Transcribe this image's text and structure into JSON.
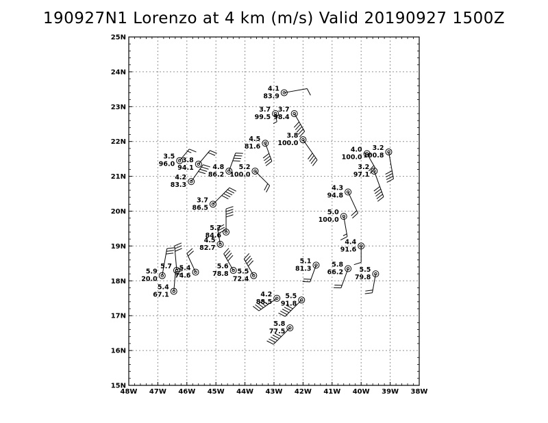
{
  "title": "190927N1 Lorenzo at 4 km (m/s) Valid 20190927 1500Z",
  "chart_data": {
    "type": "scatter",
    "xlim": [
      -48,
      -38
    ],
    "ylim": [
      15,
      25
    ],
    "x_tick_labels": [
      "48W",
      "47W",
      "46W",
      "45W",
      "44W",
      "43W",
      "42W",
      "41W",
      "40W",
      "39W",
      "38W"
    ],
    "y_tick_labels": [
      "15N",
      "16N",
      "17N",
      "18N",
      "19N",
      "20N",
      "21N",
      "22N",
      "23N",
      "24N",
      "25N"
    ],
    "grid": true,
    "observations": [
      {
        "lon": -42.65,
        "lat": 23.4,
        "speed": "4.1",
        "pressure": "83.9",
        "barb_dir": 80,
        "barb_len": 34,
        "barbs": [
          2
        ]
      },
      {
        "lon": -42.95,
        "lat": 22.8,
        "speed": "3.7",
        "pressure": "99.5",
        "barb_dir": 170,
        "barb_len": 12,
        "barbs": [
          1
        ]
      },
      {
        "lon": -42.3,
        "lat": 22.8,
        "speed": "3.7",
        "pressure": "98.4",
        "barb_dir": 150,
        "barb_len": 30,
        "barbs": [
          2,
          2,
          2,
          2,
          2
        ]
      },
      {
        "lon": -43.3,
        "lat": 21.95,
        "speed": "4.5",
        "pressure": "81.6",
        "barb_dir": 160,
        "barb_len": 28,
        "barbs": [
          2,
          2,
          2,
          2
        ]
      },
      {
        "lon": -42.0,
        "lat": 22.05,
        "speed": "3.8",
        "pressure": "100.0",
        "barb_dir": 145,
        "barb_len": 36,
        "barbs": [
          2,
          2,
          2,
          2
        ]
      },
      {
        "lon": -46.25,
        "lat": 21.45,
        "speed": "3.5",
        "pressure": "96.0",
        "barb_dir": 40,
        "barb_len": 22,
        "barbs": [
          2,
          1
        ]
      },
      {
        "lon": -45.6,
        "lat": 21.35,
        "speed": "3.8",
        "pressure": "94.1",
        "barb_dir": 40,
        "barb_len": 26,
        "barbs": [
          2,
          2
        ]
      },
      {
        "lon": -44.55,
        "lat": 21.15,
        "speed": "4.8",
        "pressure": "86.2",
        "barb_dir": 20,
        "barb_len": 28,
        "barbs": [
          2,
          2,
          2,
          2
        ]
      },
      {
        "lon": -43.65,
        "lat": 21.15,
        "speed": "5.2",
        "pressure": "100.0",
        "barb_dir": 135,
        "barb_len": 30,
        "barbs": [
          2,
          2
        ]
      },
      {
        "lon": -45.85,
        "lat": 20.85,
        "speed": "4.2",
        "pressure": "83.3",
        "barb_dir": 35,
        "barb_len": 30,
        "barbs": [
          2,
          2,
          2,
          2
        ]
      },
      {
        "lon": -45.1,
        "lat": 20.2,
        "speed": "3.7",
        "pressure": "86.5",
        "barb_dir": 45,
        "barb_len": 34,
        "barbs": [
          2,
          2,
          2,
          2,
          2
        ]
      },
      {
        "lon": -44.65,
        "lat": 19.4,
        "speed": "5.7",
        "pressure": "84.6",
        "barb_dir": 0,
        "barb_len": 34,
        "barbs": [
          2,
          2,
          2,
          2
        ]
      },
      {
        "lon": -44.85,
        "lat": 19.05,
        "speed": "4.5",
        "pressure": "82.7",
        "barb_dir": 350,
        "barb_len": 24,
        "barbs": [
          2,
          2,
          2
        ]
      },
      {
        "lon": -44.4,
        "lat": 18.3,
        "speed": "5.6",
        "pressure": "78.8",
        "barb_dir": 330,
        "barb_len": 28,
        "barbs": [
          2,
          2,
          2,
          2
        ]
      },
      {
        "lon": -43.7,
        "lat": 18.15,
        "speed": "5.5",
        "pressure": "72.4",
        "barb_dir": 330,
        "barb_len": 28,
        "barbs": [
          2,
          2,
          2,
          2
        ]
      },
      {
        "lon": -46.35,
        "lat": 18.3,
        "speed": "5.7",
        "pressure": "",
        "barb_dir": 355,
        "barb_len": 36,
        "barbs": [
          2,
          2,
          2
        ]
      },
      {
        "lon": -45.7,
        "lat": 18.25,
        "speed": "5.4",
        "pressure": "74.6",
        "barb_dir": 335,
        "barb_len": 30,
        "barbs": [
          2,
          2
        ]
      },
      {
        "lon": -46.85,
        "lat": 18.15,
        "speed": "5.9",
        "pressure": "20.0",
        "barb_dir": 10,
        "barb_len": 40,
        "barbs": [
          2,
          2,
          2
        ]
      },
      {
        "lon": -46.45,
        "lat": 17.7,
        "speed": "5.4",
        "pressure": "67.1",
        "barb_dir": 5,
        "barb_len": 32,
        "barbs": [
          2,
          2,
          2
        ]
      },
      {
        "lon": -41.55,
        "lat": 18.45,
        "speed": "5.1",
        "pressure": "81.3",
        "barb_dir": 200,
        "barb_len": 26,
        "barbs": [
          2,
          2
        ]
      },
      {
        "lon": -42.9,
        "lat": 17.5,
        "speed": "4.2",
        "pressure": "88.5",
        "barb_dir": 235,
        "barb_len": 32,
        "barbs": [
          2,
          2,
          2,
          2,
          2
        ]
      },
      {
        "lon": -42.05,
        "lat": 17.45,
        "speed": "5.5",
        "pressure": "91.8",
        "barb_dir": 225,
        "barb_len": 34,
        "barbs": [
          2,
          2,
          2,
          2,
          2
        ]
      },
      {
        "lon": -42.45,
        "lat": 16.65,
        "speed": "5.8",
        "pressure": "77.5",
        "barb_dir": 225,
        "barb_len": 34,
        "barbs": [
          2,
          2,
          2,
          2,
          2
        ]
      },
      {
        "lon": -39.8,
        "lat": 21.65,
        "speed": "4.0",
        "pressure": "100.0",
        "barb_dir": 150,
        "barb_len": 24,
        "barbs": [
          2,
          2
        ]
      },
      {
        "lon": -39.05,
        "lat": 21.7,
        "speed": "3.2",
        "pressure": "100.8",
        "barb_dir": 170,
        "barb_len": 40,
        "barbs": [
          2,
          2,
          2,
          2
        ]
      },
      {
        "lon": -39.55,
        "lat": 21.15,
        "speed": "3.2",
        "pressure": "97.1",
        "barb_dir": 160,
        "barb_len": 40,
        "barbs": [
          2,
          2,
          2,
          2,
          2
        ]
      },
      {
        "lon": -40.45,
        "lat": 20.55,
        "speed": "4.3",
        "pressure": "94.8",
        "barb_dir": 155,
        "barb_len": 34,
        "barbs": [
          2,
          2
        ]
      },
      {
        "lon": -40.6,
        "lat": 19.85,
        "speed": "5.0",
        "pressure": "100.0",
        "barb_dir": 170,
        "barb_len": 30,
        "barbs": [
          2,
          1
        ]
      },
      {
        "lon": -40.0,
        "lat": 19.0,
        "speed": "4.4",
        "pressure": "91.6",
        "barb_dir": 180,
        "barb_len": 24,
        "barbs": [
          2
        ]
      },
      {
        "lon": -40.45,
        "lat": 18.35,
        "speed": "5.8",
        "pressure": "66.2",
        "barb_dir": 200,
        "barb_len": 30,
        "barbs": [
          2,
          2
        ]
      },
      {
        "lon": -39.5,
        "lat": 18.2,
        "speed": "5.5",
        "pressure": "79.8",
        "barb_dir": 190,
        "barb_len": 28,
        "barbs": [
          2,
          2
        ]
      }
    ]
  }
}
